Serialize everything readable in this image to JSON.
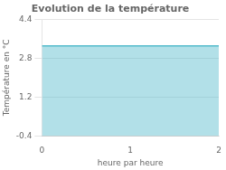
{
  "chart_data": {
    "type": "line",
    "title": "Evolution de la température",
    "xlabel": "heure par heure",
    "ylabel": "Température en °C",
    "x": [
      0,
      2
    ],
    "values": [
      3.3,
      3.3
    ],
    "color": "#55bbcc",
    "xlim": [
      0,
      2
    ],
    "xticks": [
      0,
      1,
      2
    ],
    "ylim": [
      -0.4,
      4.4
    ],
    "yticks": [
      -0.4,
      1.2,
      2.8,
      4.4
    ],
    "grid": "y"
  }
}
